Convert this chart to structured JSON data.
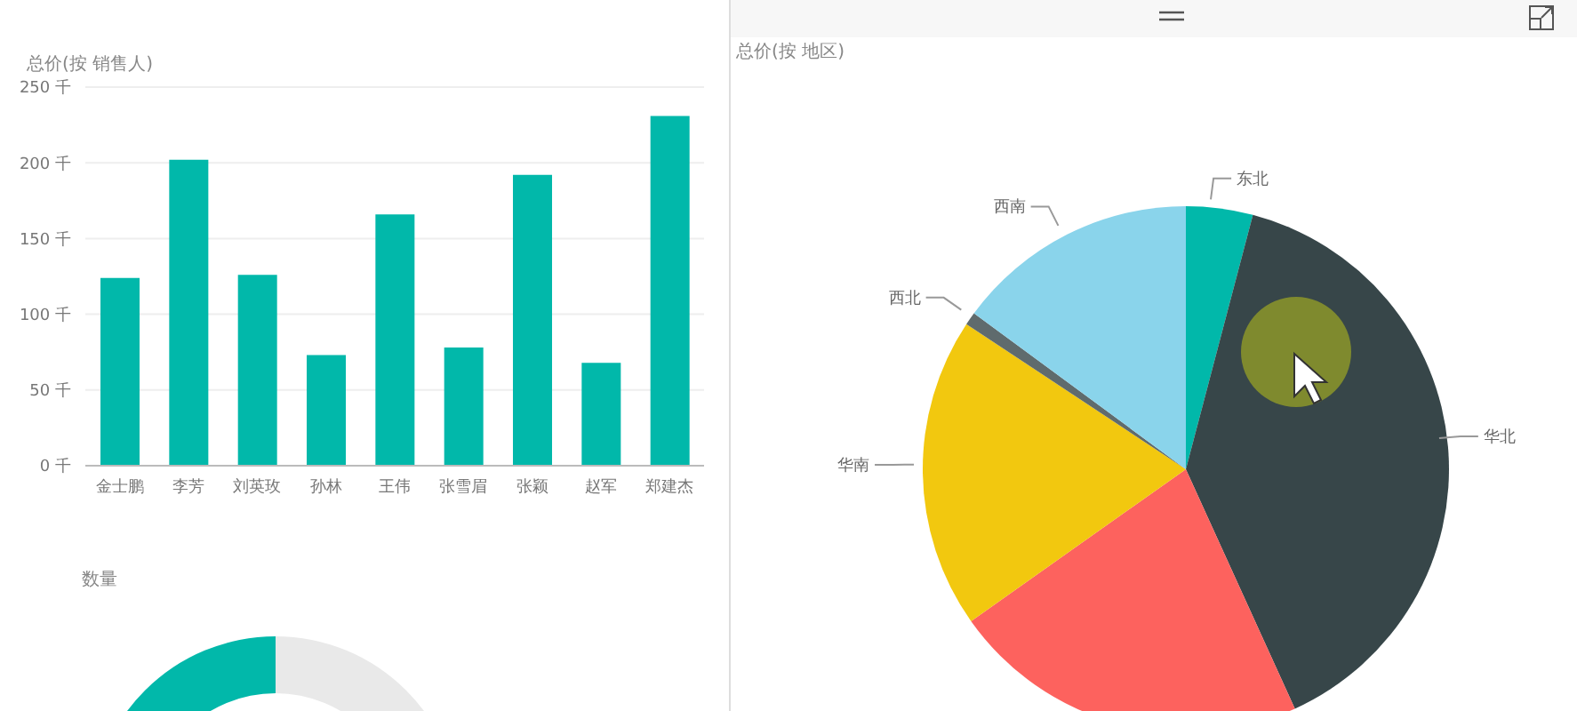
{
  "chart_data": [
    {
      "type": "bar",
      "title": "总价(按 销售人)",
      "categories": [
        "金士鹏",
        "李芳",
        "刘英玫",
        "孙林",
        "王伟",
        "张雪眉",
        "张颖",
        "赵军",
        "郑建杰"
      ],
      "values": [
        124,
        202,
        126,
        73,
        166,
        78,
        192,
        68,
        231
      ],
      "color": "#01b8aa",
      "ylim": [
        0,
        250
      ],
      "yticks": [
        {
          "value": 0,
          "label": "0 千"
        },
        {
          "value": 50,
          "label": "50 千"
        },
        {
          "value": 100,
          "label": "100 千"
        },
        {
          "value": 150,
          "label": "150 千"
        },
        {
          "value": 200,
          "label": "200 千"
        },
        {
          "value": 250,
          "label": "250 千"
        }
      ],
      "grid": "y",
      "legend": false
    },
    {
      "type": "pie",
      "title": "总价(按 地区)",
      "categories": [
        "东北",
        "华北",
        null,
        "华南",
        "西北",
        "西南"
      ],
      "values": [
        4.1,
        39.1,
        22.0,
        19.1,
        0.8,
        14.9
      ],
      "colors": [
        "#01b8aa",
        "#374649",
        "#fd625e",
        "#f2c80f",
        "#5f6b6d",
        "#8ad4eb"
      ],
      "legend": false
    },
    {
      "type": "donut",
      "title": "数量",
      "categories": [
        null,
        null
      ],
      "values": [
        50,
        50
      ],
      "colors": [
        "#01b8aa",
        "#e9e9e9"
      ],
      "legend": false
    }
  ]
}
